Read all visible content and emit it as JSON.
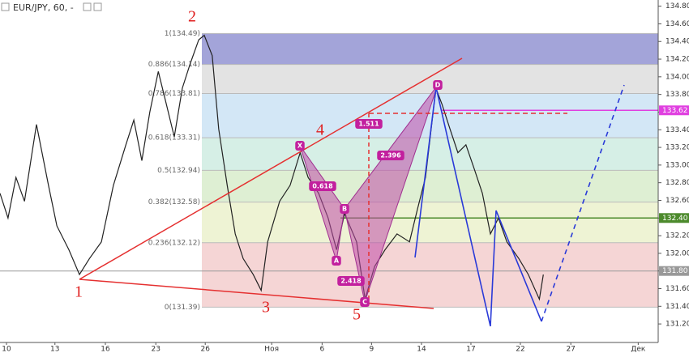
{
  "chart_data": {
    "type": "line",
    "title": "EUR/JPY, 60, -",
    "color": "#222222",
    "x": [
      -0.13,
      0.03,
      0.19,
      0.36,
      0.6,
      0.84,
      1.01,
      1.25,
      1.46,
      1.66,
      1.9,
      2.14,
      2.39,
      2.55,
      2.71,
      2.87,
      3.04,
      3.2,
      3.36,
      3.52,
      3.68,
      3.85,
      3.96,
      4.12,
      4.25,
      4.42,
      4.58,
      4.74,
      4.94,
      5.1,
      5.23,
      5.47,
      5.68,
      5.88,
      6.04,
      6.25,
      6.44,
      6.61,
      6.77,
      7.01,
      7.18,
      7.37,
      7.58,
      7.82,
      8.07,
      8.23,
      8.39,
      8.6,
      8.72,
      8.88,
      9.04,
      9.2,
      9.37,
      9.53,
      9.69,
      9.85,
      10.02,
      10.26,
      10.45,
      10.67,
      10.75
    ],
    "values": [
      132.68,
      132.4,
      132.86,
      132.59,
      133.46,
      132.77,
      132.31,
      132.04,
      131.76,
      131.94,
      132.13,
      132.77,
      133.23,
      133.51,
      133.05,
      133.6,
      134.06,
      133.69,
      133.32,
      133.87,
      134.15,
      134.42,
      134.47,
      134.24,
      133.41,
      132.77,
      132.22,
      131.94,
      131.76,
      131.58,
      132.13,
      132.59,
      132.77,
      133.14,
      132.86,
      132.68,
      132.4,
      132.04,
      132.45,
      132.13,
      131.48,
      131.85,
      132.04,
      132.22,
      132.13,
      132.5,
      132.86,
      133.87,
      133.69,
      133.41,
      133.14,
      133.23,
      132.95,
      132.68,
      132.22,
      132.4,
      132.13,
      131.94,
      131.76,
      131.48,
      131.76
    ],
    "xlim": [
      -0.13,
      13.05
    ],
    "xticks": [
      {
        "value": 0,
        "label": "10"
      },
      {
        "value": 0.97,
        "label": "13"
      },
      {
        "value": 1.98,
        "label": "16"
      },
      {
        "value": 2.99,
        "label": "23"
      },
      {
        "value": 3.98,
        "label": "26"
      },
      {
        "value": 5.31,
        "label": "Ноя"
      },
      {
        "value": 6.32,
        "label": "6"
      },
      {
        "value": 7.31,
        "label": "9"
      },
      {
        "value": 8.31,
        "label": "14"
      },
      {
        "value": 9.3,
        "label": "17"
      },
      {
        "value": 10.29,
        "label": "22"
      },
      {
        "value": 11.3,
        "label": "27"
      },
      {
        "value": 12.65,
        "label": "Дек"
      }
    ],
    "ylim": [
      130.99,
      134.87
    ],
    "yticks": [
      {
        "value": 131.2,
        "label": "131.20"
      },
      {
        "value": 131.4,
        "label": "131.40"
      },
      {
        "value": 131.6,
        "label": "131.60"
      },
      {
        "value": 131.8,
        "label": "131.80"
      },
      {
        "value": 132,
        "label": "132.00"
      },
      {
        "value": 132.2,
        "label": "132.20"
      },
      {
        "value": 132.4,
        "label": "132.40"
      },
      {
        "value": 132.6,
        "label": "132.60"
      },
      {
        "value": 132.8,
        "label": "132.80"
      },
      {
        "value": 133,
        "label": "133.00"
      },
      {
        "value": 133.2,
        "label": "133.20"
      },
      {
        "value": 133.4,
        "label": "133.40"
      },
      {
        "value": 133.6,
        "label": "133.60"
      },
      {
        "value": 133.8,
        "label": "133.80"
      },
      {
        "value": 134,
        "label": "134.00"
      },
      {
        "value": 134.2,
        "label": "134.20"
      },
      {
        "value": 134.4,
        "label": "134.40"
      },
      {
        "value": 134.6,
        "label": "134.60"
      },
      {
        "value": 134.8,
        "label": "134.80"
      }
    ],
    "fib_levels": [
      {
        "label": "1(134.49)",
        "value": 134.49,
        "color": "#a3a4d9"
      },
      {
        "label": "0.886(134.14)",
        "value": 134.14,
        "color": "#e3e3e3"
      },
      {
        "label": "0.786(133.81)",
        "value": 133.81,
        "color": "#d3e7f6"
      },
      {
        "label": "0.618(133.31)",
        "value": 133.31,
        "color": "#d6efe6"
      },
      {
        "label": "0.5(132.94)",
        "value": 132.94,
        "color": "#deefd3"
      },
      {
        "label": "0.382(132.58)",
        "value": 132.58,
        "color": "#eef3d4"
      },
      {
        "label": "0.236(132.12)",
        "value": 132.12,
        "color": "#f5d5d5"
      },
      {
        "label": "0(131.39)",
        "value": 131.39,
        "color": "#f5d5d5"
      }
    ],
    "price_lines": [
      {
        "value": 133.62,
        "label": "133.62",
        "color": "#e040e0"
      },
      {
        "value": 132.4,
        "label": "132.40",
        "color": "#4c8a2c"
      },
      {
        "value": 131.8,
        "label": "131.80",
        "color": "#999999"
      }
    ],
    "wave_labels": [
      "1",
      "2",
      "3",
      "4",
      "5"
    ],
    "pattern_points": [
      "X",
      "A",
      "B",
      "C",
      "D"
    ],
    "ratios": [
      1.511,
      2.396,
      0.618,
      2.418
    ]
  }
}
